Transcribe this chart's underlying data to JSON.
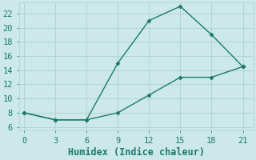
{
  "xlabel": "Humidex (Indice chaleur)",
  "line1_x": [
    0,
    3,
    6,
    9,
    12,
    15,
    18,
    21
  ],
  "line1_y": [
    8,
    7,
    7,
    15,
    21,
    23,
    19,
    14.5
  ],
  "line2_x": [
    0,
    3,
    6,
    9,
    12,
    15,
    18,
    21
  ],
  "line2_y": [
    8,
    7,
    7,
    8,
    10.5,
    13,
    13,
    14.5
  ],
  "line_color": "#1a7a6e",
  "bg_color": "#cce8e8",
  "grid_color": "#b0cfcf",
  "xlim": [
    -0.5,
    22
  ],
  "ylim": [
    5.5,
    23.5
  ],
  "xticks": [
    0,
    3,
    6,
    9,
    12,
    15,
    18,
    21
  ],
  "yticks": [
    6,
    8,
    10,
    12,
    14,
    16,
    18,
    20,
    22
  ],
  "marker": "D",
  "markersize": 2.5,
  "linewidth": 1.0,
  "tick_color": "#1a7a6e",
  "tick_fontsize": 7.5,
  "xlabel_fontsize": 8.5
}
